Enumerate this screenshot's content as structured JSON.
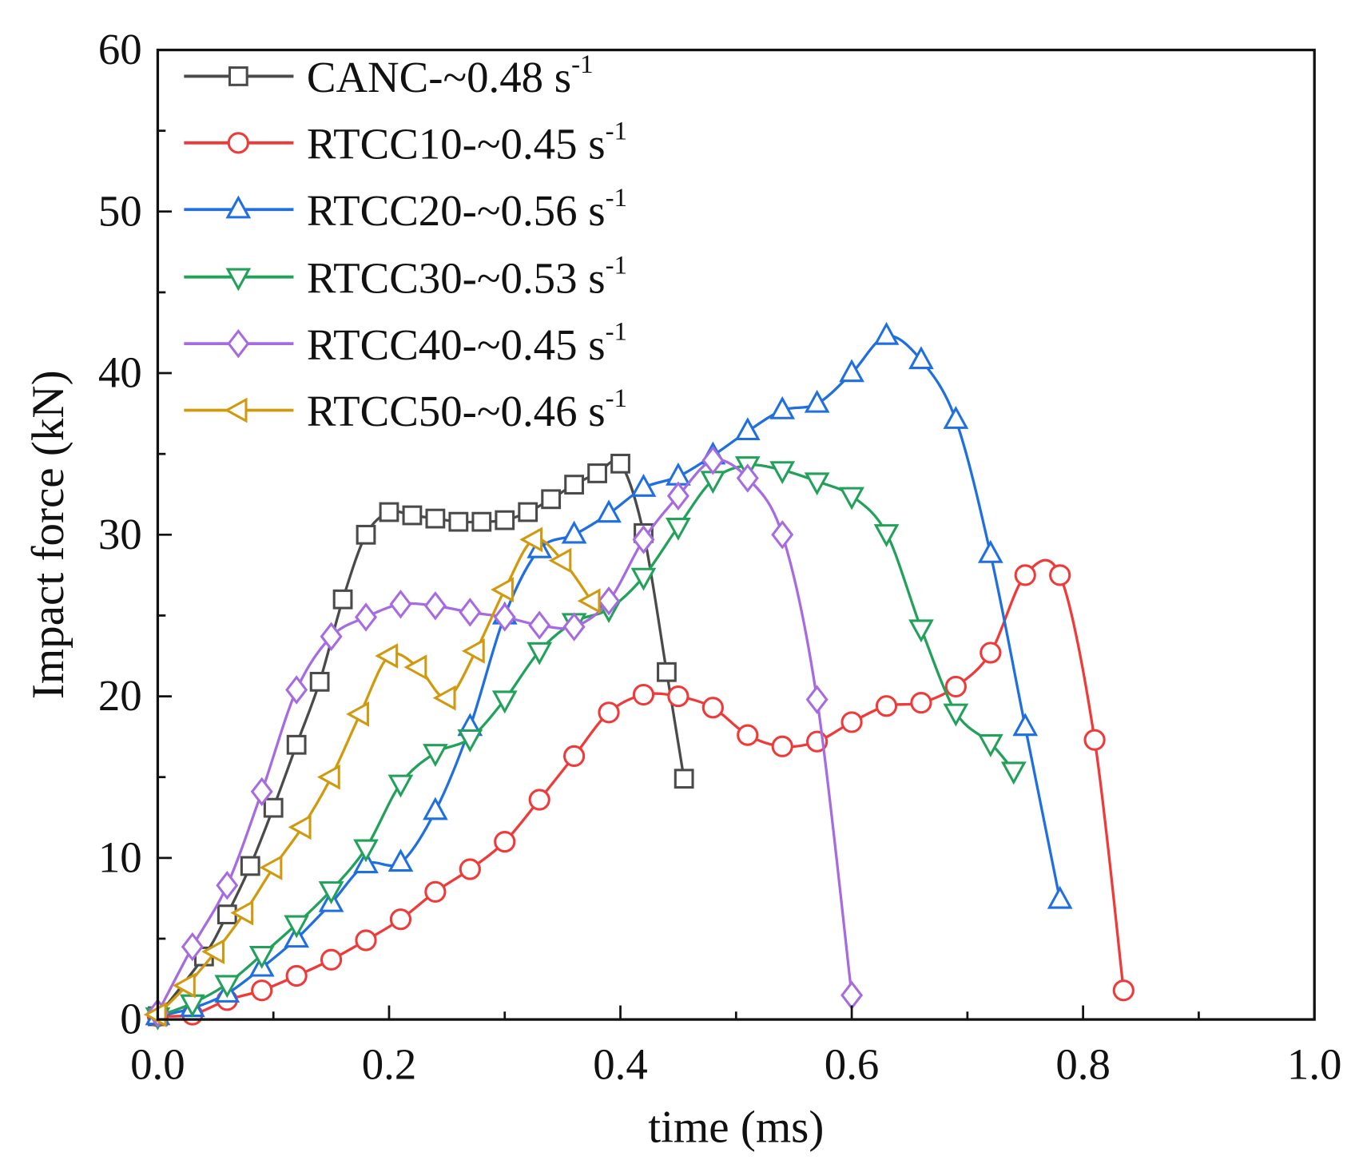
{
  "chart_data": {
    "type": "line",
    "title": "",
    "xlabel": "time (ms)",
    "ylabel": "Impact force (kN)",
    "xlim": [
      0,
      1.0
    ],
    "ylim": [
      0,
      60
    ],
    "xticks": [
      "0.0",
      "0.2",
      "0.4",
      "0.6",
      "0.8",
      "1.0"
    ],
    "yticks": [
      "0",
      "10",
      "20",
      "30",
      "40",
      "50",
      "60"
    ],
    "grid": false,
    "legend_position": "top-left",
    "series": [
      {
        "name": "CANC-~0.48 s",
        "exp": "-1",
        "color": "#4a4a4a",
        "marker": "square",
        "x": [
          0.0,
          0.04,
          0.06,
          0.08,
          0.1,
          0.12,
          0.14,
          0.16,
          0.18,
          0.2,
          0.22,
          0.24,
          0.26,
          0.28,
          0.3,
          0.32,
          0.34,
          0.36,
          0.38,
          0.4,
          0.42,
          0.44,
          0.455
        ],
        "y": [
          0.2,
          3.9,
          6.5,
          9.5,
          13.1,
          17.0,
          20.9,
          26.0,
          30.0,
          31.4,
          31.2,
          31.0,
          30.8,
          30.8,
          30.9,
          31.4,
          32.2,
          33.1,
          33.8,
          34.4,
          30.1,
          21.5,
          14.9
        ]
      },
      {
        "name": "RTCC10-~0.45 s",
        "exp": "-1",
        "color": "#f03a3a",
        "marker": "circle",
        "x": [
          0.0,
          0.03,
          0.06,
          0.09,
          0.12,
          0.15,
          0.18,
          0.21,
          0.24,
          0.27,
          0.3,
          0.33,
          0.36,
          0.39,
          0.42,
          0.45,
          0.48,
          0.51,
          0.54,
          0.57,
          0.6,
          0.63,
          0.66,
          0.69,
          0.72,
          0.75,
          0.78,
          0.81,
          0.835
        ],
        "y": [
          0.2,
          0.3,
          1.2,
          1.8,
          2.7,
          3.7,
          4.9,
          6.2,
          7.9,
          9.3,
          11.0,
          13.6,
          16.3,
          19.0,
          20.1,
          20.0,
          19.3,
          17.6,
          16.9,
          17.2,
          18.4,
          19.4,
          19.6,
          20.6,
          22.7,
          27.5,
          27.5,
          17.3,
          1.8
        ]
      },
      {
        "name": "RTCC20-~0.56 s",
        "exp": "-1",
        "color": "#1f6fe0",
        "marker": "triangle-up",
        "x": [
          0.0,
          0.03,
          0.06,
          0.09,
          0.12,
          0.15,
          0.18,
          0.21,
          0.24,
          0.27,
          0.3,
          0.33,
          0.36,
          0.39,
          0.42,
          0.45,
          0.48,
          0.51,
          0.54,
          0.57,
          0.6,
          0.63,
          0.66,
          0.69,
          0.72,
          0.75,
          0.78
        ],
        "y": [
          0.2,
          0.7,
          1.6,
          3.2,
          5.0,
          7.2,
          9.6,
          9.7,
          12.9,
          18.1,
          25.0,
          29.1,
          30.0,
          31.3,
          32.9,
          33.6,
          34.9,
          36.4,
          37.7,
          38.1,
          40.0,
          42.3,
          40.8,
          37.1,
          28.8,
          18.1,
          7.4
        ]
      },
      {
        "name": "RTCC30-~0.53 s",
        "exp": "-1",
        "color": "#22a15a",
        "marker": "triangle-down",
        "x": [
          0.0,
          0.03,
          0.06,
          0.09,
          0.12,
          0.15,
          0.18,
          0.21,
          0.24,
          0.27,
          0.3,
          0.33,
          0.36,
          0.39,
          0.42,
          0.45,
          0.48,
          0.51,
          0.54,
          0.57,
          0.6,
          0.63,
          0.66,
          0.69,
          0.72,
          0.74
        ],
        "y": [
          0.2,
          1.0,
          2.2,
          4.0,
          5.9,
          8.0,
          10.6,
          14.6,
          16.5,
          17.4,
          19.8,
          22.8,
          24.6,
          25.4,
          27.4,
          30.5,
          33.4,
          34.3,
          34.0,
          33.3,
          32.4,
          30.1,
          24.2,
          19.0,
          17.1,
          15.4
        ]
      },
      {
        "name": "RTCC40-~0.45 s",
        "exp": "-1",
        "color": "#a66be0",
        "marker": "diamond",
        "x": [
          0.0,
          0.03,
          0.06,
          0.09,
          0.12,
          0.15,
          0.18,
          0.21,
          0.24,
          0.27,
          0.3,
          0.33,
          0.36,
          0.39,
          0.42,
          0.45,
          0.48,
          0.51,
          0.54,
          0.57,
          0.6
        ],
        "y": [
          0.4,
          4.5,
          8.3,
          14.1,
          20.4,
          23.7,
          24.9,
          25.7,
          25.6,
          25.2,
          24.9,
          24.4,
          24.3,
          25.9,
          29.7,
          32.4,
          34.6,
          33.5,
          30.0,
          19.8,
          1.5
        ]
      },
      {
        "name": "RTCC50-~0.46 s",
        "exp": "-1",
        "color": "#d19a0e",
        "marker": "triangle-left",
        "x": [
          0.0,
          0.025,
          0.05,
          0.075,
          0.1,
          0.125,
          0.15,
          0.175,
          0.2,
          0.225,
          0.25,
          0.275,
          0.3,
          0.325,
          0.35,
          0.375
        ],
        "y": [
          0.3,
          2.1,
          4.2,
          6.6,
          9.4,
          11.9,
          15.0,
          18.9,
          22.5,
          21.8,
          19.9,
          22.8,
          26.6,
          29.7,
          28.4,
          25.9
        ]
      }
    ]
  }
}
